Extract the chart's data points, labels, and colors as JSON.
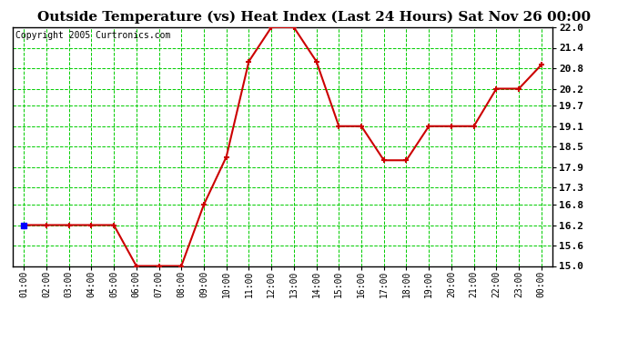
{
  "title": "Outside Temperature (vs) Heat Index (Last 24 Hours) Sat Nov 26 00:00",
  "copyright": "Copyright 2005 Curtronics.com",
  "x_labels": [
    "01:00",
    "02:00",
    "03:00",
    "04:00",
    "05:00",
    "06:00",
    "07:00",
    "08:00",
    "09:00",
    "10:00",
    "11:00",
    "12:00",
    "13:00",
    "14:00",
    "15:00",
    "16:00",
    "17:00",
    "18:00",
    "19:00",
    "20:00",
    "21:00",
    "22:00",
    "23:00",
    "00:00"
  ],
  "y_values": [
    16.2,
    16.2,
    16.2,
    16.2,
    16.2,
    15.0,
    15.0,
    15.0,
    16.8,
    18.2,
    21.0,
    22.0,
    22.0,
    21.0,
    19.1,
    19.1,
    18.1,
    18.1,
    19.1,
    19.1,
    19.1,
    20.2,
    20.2,
    20.9
  ],
  "ylim_min": 15.0,
  "ylim_max": 22.0,
  "yticks": [
    15.0,
    15.6,
    16.2,
    16.8,
    17.3,
    17.9,
    18.5,
    19.1,
    19.7,
    20.2,
    20.8,
    21.4,
    22.0
  ],
  "line_color": "#cc0000",
  "marker_color": "#cc0000",
  "bg_color": "#ffffff",
  "plot_bg_color": "#ffffff",
  "grid_color": "#00cc00",
  "title_fontsize": 11,
  "copyright_fontsize": 7
}
